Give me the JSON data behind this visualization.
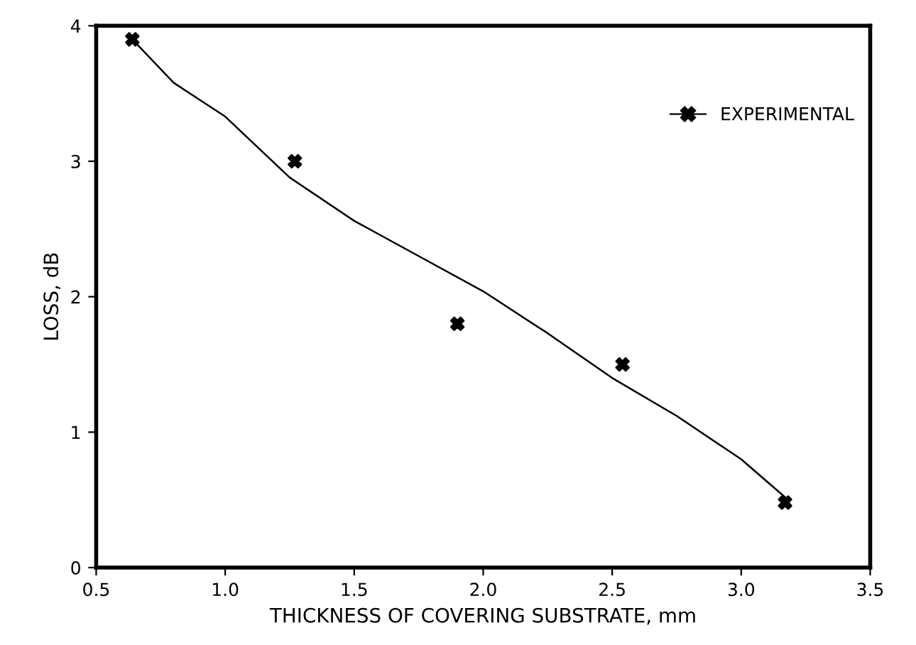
{
  "chart_data": {
    "type": "scatter",
    "xlabel": "THICKNESS OF COVERING SUBSTRATE, mm",
    "ylabel": "LOSS, dB",
    "series": [
      {
        "name": "EXPERIMENTAL",
        "color": "#000000",
        "marker": "cross",
        "x": [
          0.64,
          1.27,
          1.9,
          2.54,
          3.17
        ],
        "values": [
          3.9,
          3.0,
          1.8,
          1.5,
          0.48
        ]
      },
      {
        "type": "line",
        "color": "#000000",
        "x": [
          0.64,
          0.8,
          1.0,
          1.25,
          1.5,
          1.75,
          2.0,
          2.25,
          2.5,
          2.75,
          3.0,
          3.17
        ],
        "values": [
          3.9,
          3.58,
          3.33,
          2.88,
          2.56,
          2.3,
          2.04,
          1.73,
          1.4,
          1.12,
          0.8,
          0.52
        ]
      }
    ],
    "xlim": [
      0.5,
      3.5
    ],
    "xticks": [
      0.5,
      {
        "value": 1,
        "label": "1.0"
      },
      1.5,
      {
        "value": 2,
        "label": "2.0"
      },
      2.5,
      {
        "value": 3,
        "label": "3.0"
      },
      3.5
    ],
    "ylim": [
      0,
      4
    ],
    "yticks": [
      0,
      1,
      2,
      3,
      4
    ],
    "grid": false,
    "legend": "top right"
  }
}
